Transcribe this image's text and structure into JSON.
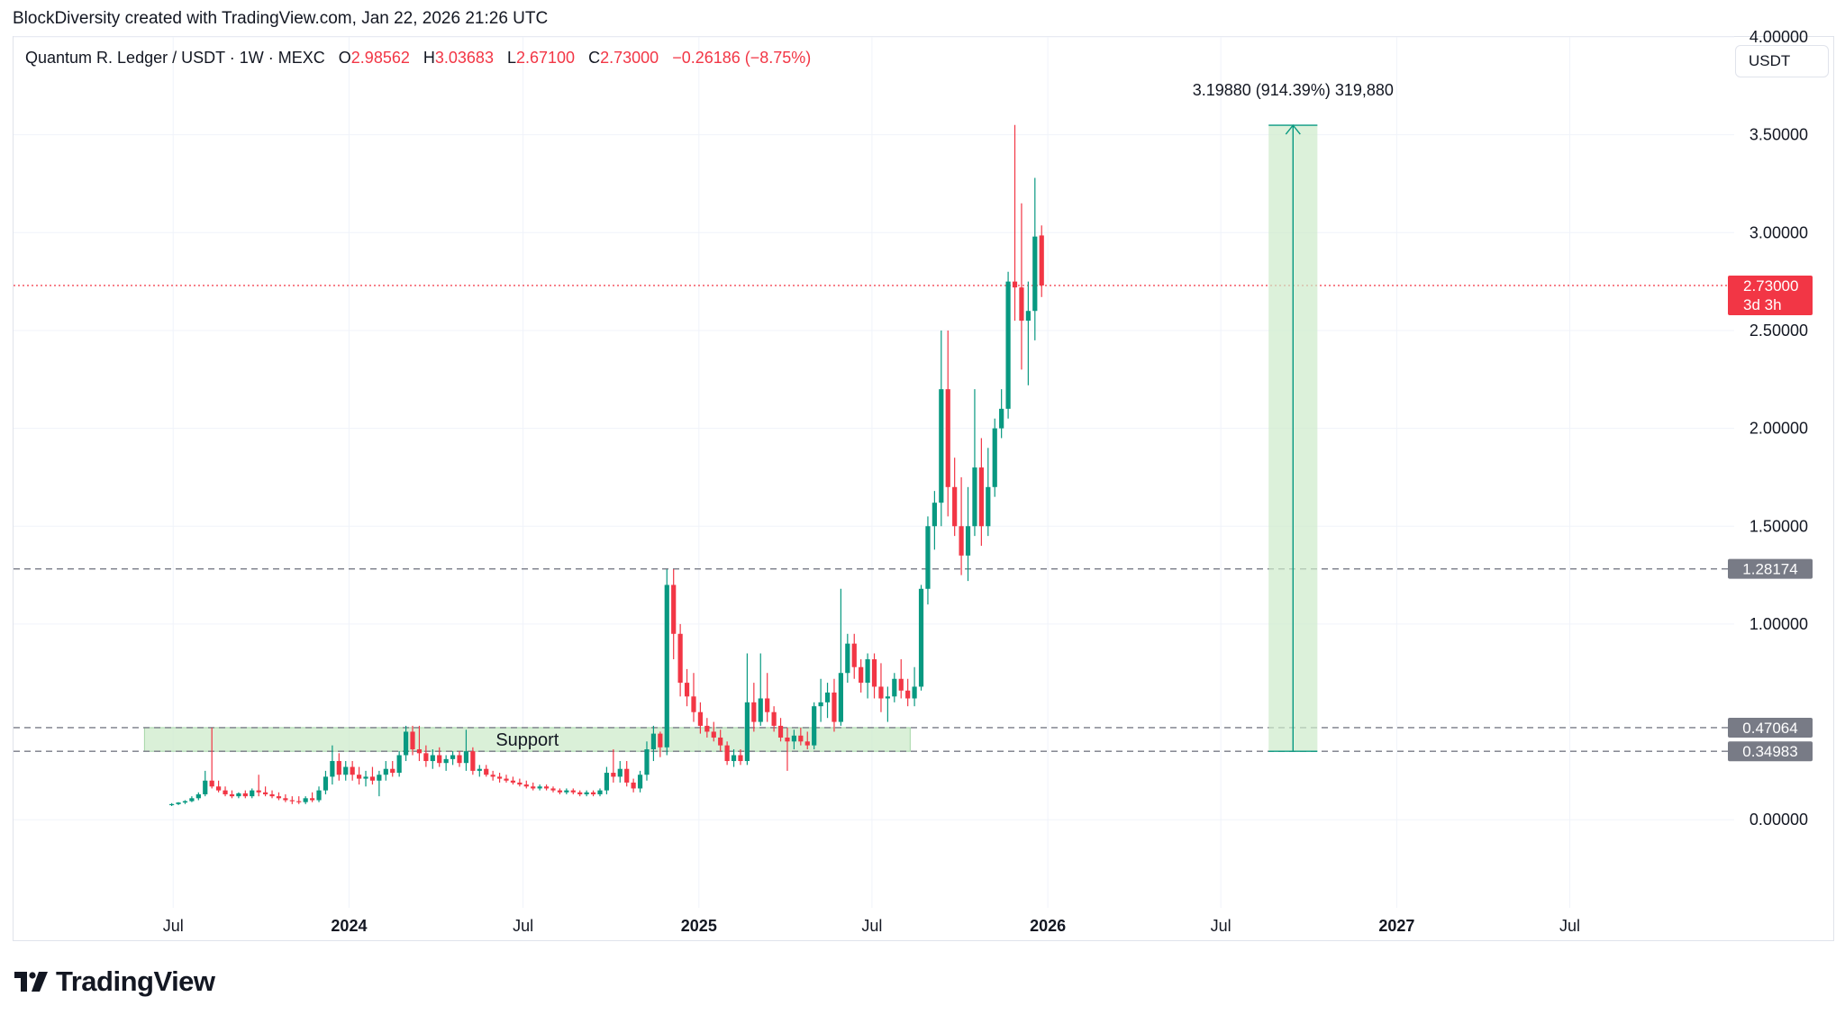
{
  "credit": "BlockDiversity created with TradingView.com, Jan 22, 2026 21:26 UTC",
  "legend": {
    "symbol": "Quantum R. Ledger / USDT · 1W · MEXC",
    "open_label": "O",
    "open": "2.98562",
    "high_label": "H",
    "high": "3.03683",
    "low_label": "L",
    "low": "2.67100",
    "close_label": "C",
    "close": "2.73000",
    "change": "−0.26186 (−8.75%)"
  },
  "currency": "USDT",
  "logo_text": "TradingView",
  "colors": {
    "up": "#089981",
    "down": "#f23645",
    "grid": "#f0f3fa",
    "zone": "#cdebcb",
    "badge_gray": "#787b86"
  },
  "chart_data": {
    "type": "candlestick",
    "timeframe": "1W",
    "y_range": [
      -0.45,
      4.0
    ],
    "price_ticks": [
      "4.00000",
      "3.50000",
      "3.00000",
      "2.50000",
      "2.00000",
      "1.50000",
      "1.00000",
      "0.00000"
    ],
    "time_ticks": [
      {
        "label": "Jul",
        "date": "2023-07-01",
        "bold": false
      },
      {
        "label": "2024",
        "date": "2024-01-01",
        "bold": true
      },
      {
        "label": "Jul",
        "date": "2024-07-01",
        "bold": false
      },
      {
        "label": "2025",
        "date": "2025-01-01",
        "bold": true
      },
      {
        "label": "Jul",
        "date": "2025-07-01",
        "bold": false
      },
      {
        "label": "2026",
        "date": "2026-01-01",
        "bold": true
      },
      {
        "label": "Jul",
        "date": "2026-07-01",
        "bold": false
      },
      {
        "label": "2027",
        "date": "2027-01-01",
        "bold": true
      },
      {
        "label": "Jul",
        "date": "2027-07-01",
        "bold": false
      }
    ],
    "x_range": [
      "2023-01-15",
      "2027-12-20"
    ],
    "last_price": {
      "value": 2.73,
      "label": "2.73000",
      "countdown": "3d 3h"
    },
    "horizontal_levels": [
      {
        "value": 1.28174,
        "label": "1.28174"
      },
      {
        "value": 0.47064,
        "label": "0.47064"
      },
      {
        "value": 0.34983,
        "label": "0.34983"
      }
    ],
    "support_zone": {
      "label": "Support",
      "from": 0.34983,
      "to": 0.47064,
      "start": "2023-06-01",
      "end": "2025-08-10"
    },
    "measure": {
      "label": "3.19880 (914.39%) 319,880",
      "from": 0.34983,
      "to": 3.54863,
      "start": "2026-08-20",
      "end": "2026-10-10"
    },
    "candles": [
      {
        "d": "2023-06-26",
        "o": 0.075,
        "h": 0.085,
        "l": 0.07,
        "c": 0.08
      },
      {
        "d": "2023-07-03",
        "o": 0.08,
        "h": 0.09,
        "l": 0.075,
        "c": 0.088
      },
      {
        "d": "2023-07-10",
        "o": 0.088,
        "h": 0.1,
        "l": 0.08,
        "c": 0.095
      },
      {
        "d": "2023-07-17",
        "o": 0.095,
        "h": 0.12,
        "l": 0.09,
        "c": 0.11
      },
      {
        "d": "2023-07-24",
        "o": 0.11,
        "h": 0.14,
        "l": 0.1,
        "c": 0.13
      },
      {
        "d": "2023-07-31",
        "o": 0.13,
        "h": 0.25,
        "l": 0.12,
        "c": 0.2
      },
      {
        "d": "2023-08-07",
        "o": 0.2,
        "h": 0.47,
        "l": 0.16,
        "c": 0.17
      },
      {
        "d": "2023-08-14",
        "o": 0.17,
        "h": 0.2,
        "l": 0.14,
        "c": 0.15
      },
      {
        "d": "2023-08-21",
        "o": 0.15,
        "h": 0.17,
        "l": 0.12,
        "c": 0.13
      },
      {
        "d": "2023-08-28",
        "o": 0.13,
        "h": 0.15,
        "l": 0.11,
        "c": 0.12
      },
      {
        "d": "2023-09-04",
        "o": 0.12,
        "h": 0.14,
        "l": 0.11,
        "c": 0.135
      },
      {
        "d": "2023-09-11",
        "o": 0.135,
        "h": 0.15,
        "l": 0.11,
        "c": 0.12
      },
      {
        "d": "2023-09-18",
        "o": 0.12,
        "h": 0.16,
        "l": 0.11,
        "c": 0.15
      },
      {
        "d": "2023-09-25",
        "o": 0.15,
        "h": 0.23,
        "l": 0.12,
        "c": 0.14
      },
      {
        "d": "2023-10-02",
        "o": 0.14,
        "h": 0.17,
        "l": 0.12,
        "c": 0.13
      },
      {
        "d": "2023-10-09",
        "o": 0.13,
        "h": 0.15,
        "l": 0.11,
        "c": 0.12
      },
      {
        "d": "2023-10-16",
        "o": 0.12,
        "h": 0.14,
        "l": 0.1,
        "c": 0.11
      },
      {
        "d": "2023-10-23",
        "o": 0.11,
        "h": 0.13,
        "l": 0.09,
        "c": 0.1
      },
      {
        "d": "2023-10-30",
        "o": 0.1,
        "h": 0.12,
        "l": 0.08,
        "c": 0.095
      },
      {
        "d": "2023-11-06",
        "o": 0.095,
        "h": 0.12,
        "l": 0.08,
        "c": 0.09
      },
      {
        "d": "2023-11-13",
        "o": 0.09,
        "h": 0.12,
        "l": 0.08,
        "c": 0.11
      },
      {
        "d": "2023-11-20",
        "o": 0.11,
        "h": 0.14,
        "l": 0.09,
        "c": 0.1
      },
      {
        "d": "2023-11-27",
        "o": 0.1,
        "h": 0.17,
        "l": 0.09,
        "c": 0.15
      },
      {
        "d": "2023-12-04",
        "o": 0.15,
        "h": 0.25,
        "l": 0.13,
        "c": 0.22
      },
      {
        "d": "2023-12-11",
        "o": 0.22,
        "h": 0.38,
        "l": 0.18,
        "c": 0.3
      },
      {
        "d": "2023-12-18",
        "o": 0.3,
        "h": 0.34,
        "l": 0.2,
        "c": 0.23
      },
      {
        "d": "2023-12-25",
        "o": 0.23,
        "h": 0.3,
        "l": 0.2,
        "c": 0.27
      },
      {
        "d": "2024-01-01",
        "o": 0.27,
        "h": 0.3,
        "l": 0.2,
        "c": 0.23
      },
      {
        "d": "2024-01-08",
        "o": 0.23,
        "h": 0.27,
        "l": 0.18,
        "c": 0.21
      },
      {
        "d": "2024-01-15",
        "o": 0.21,
        "h": 0.25,
        "l": 0.17,
        "c": 0.22
      },
      {
        "d": "2024-01-22",
        "o": 0.22,
        "h": 0.27,
        "l": 0.18,
        "c": 0.2
      },
      {
        "d": "2024-01-29",
        "o": 0.2,
        "h": 0.25,
        "l": 0.12,
        "c": 0.23
      },
      {
        "d": "2024-02-05",
        "o": 0.23,
        "h": 0.3,
        "l": 0.2,
        "c": 0.26
      },
      {
        "d": "2024-02-12",
        "o": 0.26,
        "h": 0.3,
        "l": 0.22,
        "c": 0.24
      },
      {
        "d": "2024-02-19",
        "o": 0.24,
        "h": 0.35,
        "l": 0.22,
        "c": 0.33
      },
      {
        "d": "2024-02-26",
        "o": 0.33,
        "h": 0.48,
        "l": 0.3,
        "c": 0.45
      },
      {
        "d": "2024-03-04",
        "o": 0.45,
        "h": 0.48,
        "l": 0.33,
        "c": 0.36
      },
      {
        "d": "2024-03-11",
        "o": 0.36,
        "h": 0.48,
        "l": 0.3,
        "c": 0.34
      },
      {
        "d": "2024-03-18",
        "o": 0.34,
        "h": 0.38,
        "l": 0.27,
        "c": 0.3
      },
      {
        "d": "2024-03-25",
        "o": 0.3,
        "h": 0.36,
        "l": 0.26,
        "c": 0.33
      },
      {
        "d": "2024-04-01",
        "o": 0.33,
        "h": 0.37,
        "l": 0.27,
        "c": 0.29
      },
      {
        "d": "2024-04-08",
        "o": 0.29,
        "h": 0.33,
        "l": 0.25,
        "c": 0.31
      },
      {
        "d": "2024-04-15",
        "o": 0.31,
        "h": 0.35,
        "l": 0.28,
        "c": 0.33
      },
      {
        "d": "2024-04-22",
        "o": 0.33,
        "h": 0.35,
        "l": 0.27,
        "c": 0.29
      },
      {
        "d": "2024-04-29",
        "o": 0.29,
        "h": 0.46,
        "l": 0.25,
        "c": 0.35
      },
      {
        "d": "2024-05-06",
        "o": 0.35,
        "h": 0.37,
        "l": 0.23,
        "c": 0.25
      },
      {
        "d": "2024-05-13",
        "o": 0.25,
        "h": 0.28,
        "l": 0.22,
        "c": 0.26
      },
      {
        "d": "2024-05-20",
        "o": 0.26,
        "h": 0.28,
        "l": 0.22,
        "c": 0.23
      },
      {
        "d": "2024-05-27",
        "o": 0.23,
        "h": 0.25,
        "l": 0.2,
        "c": 0.22
      },
      {
        "d": "2024-06-03",
        "o": 0.22,
        "h": 0.24,
        "l": 0.19,
        "c": 0.21
      },
      {
        "d": "2024-06-10",
        "o": 0.21,
        "h": 0.23,
        "l": 0.19,
        "c": 0.2
      },
      {
        "d": "2024-06-17",
        "o": 0.2,
        "h": 0.22,
        "l": 0.18,
        "c": 0.19
      },
      {
        "d": "2024-06-24",
        "o": 0.19,
        "h": 0.21,
        "l": 0.17,
        "c": 0.18
      },
      {
        "d": "2024-07-01",
        "o": 0.18,
        "h": 0.2,
        "l": 0.16,
        "c": 0.17
      },
      {
        "d": "2024-07-08",
        "o": 0.17,
        "h": 0.19,
        "l": 0.15,
        "c": 0.16
      },
      {
        "d": "2024-07-15",
        "o": 0.16,
        "h": 0.18,
        "l": 0.15,
        "c": 0.17
      },
      {
        "d": "2024-07-22",
        "o": 0.17,
        "h": 0.18,
        "l": 0.15,
        "c": 0.16
      },
      {
        "d": "2024-07-29",
        "o": 0.16,
        "h": 0.17,
        "l": 0.14,
        "c": 0.15
      },
      {
        "d": "2024-08-05",
        "o": 0.15,
        "h": 0.16,
        "l": 0.13,
        "c": 0.14
      },
      {
        "d": "2024-08-12",
        "o": 0.14,
        "h": 0.16,
        "l": 0.13,
        "c": 0.15
      },
      {
        "d": "2024-08-19",
        "o": 0.15,
        "h": 0.16,
        "l": 0.13,
        "c": 0.14
      },
      {
        "d": "2024-08-26",
        "o": 0.14,
        "h": 0.15,
        "l": 0.12,
        "c": 0.13
      },
      {
        "d": "2024-09-02",
        "o": 0.13,
        "h": 0.15,
        "l": 0.12,
        "c": 0.14
      },
      {
        "d": "2024-09-09",
        "o": 0.14,
        "h": 0.15,
        "l": 0.12,
        "c": 0.13
      },
      {
        "d": "2024-09-16",
        "o": 0.13,
        "h": 0.16,
        "l": 0.12,
        "c": 0.15
      },
      {
        "d": "2024-09-23",
        "o": 0.15,
        "h": 0.27,
        "l": 0.13,
        "c": 0.24
      },
      {
        "d": "2024-09-30",
        "o": 0.24,
        "h": 0.36,
        "l": 0.19,
        "c": 0.22
      },
      {
        "d": "2024-10-07",
        "o": 0.22,
        "h": 0.3,
        "l": 0.19,
        "c": 0.26
      },
      {
        "d": "2024-10-14",
        "o": 0.26,
        "h": 0.3,
        "l": 0.17,
        "c": 0.19
      },
      {
        "d": "2024-10-21",
        "o": 0.19,
        "h": 0.21,
        "l": 0.14,
        "c": 0.16
      },
      {
        "d": "2024-10-28",
        "o": 0.16,
        "h": 0.25,
        "l": 0.14,
        "c": 0.23
      },
      {
        "d": "2024-11-04",
        "o": 0.23,
        "h": 0.4,
        "l": 0.2,
        "c": 0.36
      },
      {
        "d": "2024-11-11",
        "o": 0.36,
        "h": 0.48,
        "l": 0.3,
        "c": 0.44
      },
      {
        "d": "2024-11-18",
        "o": 0.44,
        "h": 0.45,
        "l": 0.32,
        "c": 0.37
      },
      {
        "d": "2024-11-25",
        "o": 0.37,
        "h": 1.28,
        "l": 0.33,
        "c": 1.2
      },
      {
        "d": "2024-12-02",
        "o": 1.2,
        "h": 1.28,
        "l": 0.82,
        "c": 0.95
      },
      {
        "d": "2024-12-09",
        "o": 0.95,
        "h": 1.0,
        "l": 0.63,
        "c": 0.7
      },
      {
        "d": "2024-12-16",
        "o": 0.7,
        "h": 0.77,
        "l": 0.58,
        "c": 0.63
      },
      {
        "d": "2024-12-23",
        "o": 0.63,
        "h": 0.75,
        "l": 0.5,
        "c": 0.55
      },
      {
        "d": "2024-12-30",
        "o": 0.55,
        "h": 0.6,
        "l": 0.44,
        "c": 0.48
      },
      {
        "d": "2025-01-06",
        "o": 0.48,
        "h": 0.52,
        "l": 0.42,
        "c": 0.45
      },
      {
        "d": "2025-01-13",
        "o": 0.45,
        "h": 0.5,
        "l": 0.4,
        "c": 0.42
      },
      {
        "d": "2025-01-20",
        "o": 0.42,
        "h": 0.46,
        "l": 0.35,
        "c": 0.38
      },
      {
        "d": "2025-01-27",
        "o": 0.38,
        "h": 0.4,
        "l": 0.28,
        "c": 0.3
      },
      {
        "d": "2025-02-03",
        "o": 0.3,
        "h": 0.36,
        "l": 0.27,
        "c": 0.33
      },
      {
        "d": "2025-02-10",
        "o": 0.33,
        "h": 0.36,
        "l": 0.28,
        "c": 0.3
      },
      {
        "d": "2025-02-17",
        "o": 0.3,
        "h": 0.85,
        "l": 0.28,
        "c": 0.6
      },
      {
        "d": "2025-02-24",
        "o": 0.6,
        "h": 0.7,
        "l": 0.45,
        "c": 0.5
      },
      {
        "d": "2025-03-03",
        "o": 0.5,
        "h": 0.85,
        "l": 0.48,
        "c": 0.62
      },
      {
        "d": "2025-03-10",
        "o": 0.62,
        "h": 0.75,
        "l": 0.5,
        "c": 0.55
      },
      {
        "d": "2025-03-17",
        "o": 0.55,
        "h": 0.58,
        "l": 0.45,
        "c": 0.48
      },
      {
        "d": "2025-03-24",
        "o": 0.48,
        "h": 0.52,
        "l": 0.4,
        "c": 0.42
      },
      {
        "d": "2025-03-31",
        "o": 0.42,
        "h": 0.47,
        "l": 0.25,
        "c": 0.4
      },
      {
        "d": "2025-04-07",
        "o": 0.4,
        "h": 0.46,
        "l": 0.36,
        "c": 0.43
      },
      {
        "d": "2025-04-14",
        "o": 0.43,
        "h": 0.47,
        "l": 0.38,
        "c": 0.4
      },
      {
        "d": "2025-04-21",
        "o": 0.4,
        "h": 0.45,
        "l": 0.36,
        "c": 0.38
      },
      {
        "d": "2025-04-28",
        "o": 0.38,
        "h": 0.6,
        "l": 0.36,
        "c": 0.58
      },
      {
        "d": "2025-05-05",
        "o": 0.58,
        "h": 0.72,
        "l": 0.5,
        "c": 0.6
      },
      {
        "d": "2025-05-12",
        "o": 0.6,
        "h": 0.7,
        "l": 0.52,
        "c": 0.65
      },
      {
        "d": "2025-05-19",
        "o": 0.65,
        "h": 0.72,
        "l": 0.45,
        "c": 0.5
      },
      {
        "d": "2025-05-26",
        "o": 0.5,
        "h": 1.18,
        "l": 0.48,
        "c": 0.75
      },
      {
        "d": "2025-06-02",
        "o": 0.75,
        "h": 0.95,
        "l": 0.7,
        "c": 0.9
      },
      {
        "d": "2025-06-09",
        "o": 0.9,
        "h": 0.95,
        "l": 0.72,
        "c": 0.78
      },
      {
        "d": "2025-06-16",
        "o": 0.78,
        "h": 0.82,
        "l": 0.65,
        "c": 0.7
      },
      {
        "d": "2025-06-23",
        "o": 0.7,
        "h": 0.85,
        "l": 0.62,
        "c": 0.82
      },
      {
        "d": "2025-06-30",
        "o": 0.82,
        "h": 0.85,
        "l": 0.62,
        "c": 0.68
      },
      {
        "d": "2025-07-07",
        "o": 0.68,
        "h": 0.8,
        "l": 0.55,
        "c": 0.62
      },
      {
        "d": "2025-07-14",
        "o": 0.62,
        "h": 0.68,
        "l": 0.5,
        "c": 0.63
      },
      {
        "d": "2025-07-21",
        "o": 0.63,
        "h": 0.75,
        "l": 0.6,
        "c": 0.72
      },
      {
        "d": "2025-07-28",
        "o": 0.72,
        "h": 0.82,
        "l": 0.62,
        "c": 0.66
      },
      {
        "d": "2025-08-04",
        "o": 0.66,
        "h": 0.72,
        "l": 0.58,
        "c": 0.62
      },
      {
        "d": "2025-08-11",
        "o": 0.62,
        "h": 0.78,
        "l": 0.58,
        "c": 0.68
      },
      {
        "d": "2025-08-18",
        "o": 0.68,
        "h": 1.2,
        "l": 0.66,
        "c": 1.18
      },
      {
        "d": "2025-08-25",
        "o": 1.18,
        "h": 1.55,
        "l": 1.1,
        "c": 1.5
      },
      {
        "d": "2025-09-01",
        "o": 1.5,
        "h": 1.68,
        "l": 1.38,
        "c": 1.62
      },
      {
        "d": "2025-09-08",
        "o": 1.62,
        "h": 2.5,
        "l": 1.5,
        "c": 2.2
      },
      {
        "d": "2025-09-15",
        "o": 2.2,
        "h": 2.5,
        "l": 1.55,
        "c": 1.7
      },
      {
        "d": "2025-09-22",
        "o": 1.7,
        "h": 1.85,
        "l": 1.45,
        "c": 1.5
      },
      {
        "d": "2025-09-29",
        "o": 1.5,
        "h": 1.75,
        "l": 1.25,
        "c": 1.35
      },
      {
        "d": "2025-10-06",
        "o": 1.35,
        "h": 1.7,
        "l": 1.22,
        "c": 1.5
      },
      {
        "d": "2025-10-13",
        "o": 1.5,
        "h": 2.2,
        "l": 1.45,
        "c": 1.8
      },
      {
        "d": "2025-10-20",
        "o": 1.8,
        "h": 1.95,
        "l": 1.4,
        "c": 1.5
      },
      {
        "d": "2025-10-27",
        "o": 1.5,
        "h": 1.9,
        "l": 1.45,
        "c": 1.7
      },
      {
        "d": "2025-11-03",
        "o": 1.7,
        "h": 2.05,
        "l": 1.65,
        "c": 2.0
      },
      {
        "d": "2025-11-10",
        "o": 2.0,
        "h": 2.2,
        "l": 1.95,
        "c": 2.1
      },
      {
        "d": "2025-11-17",
        "o": 2.1,
        "h": 2.8,
        "l": 2.05,
        "c": 2.75
      },
      {
        "d": "2025-11-24",
        "o": 2.75,
        "h": 3.55,
        "l": 2.55,
        "c": 2.72
      },
      {
        "d": "2025-12-01",
        "o": 2.72,
        "h": 3.15,
        "l": 2.3,
        "c": 2.55
      },
      {
        "d": "2025-12-08",
        "o": 2.55,
        "h": 2.75,
        "l": 2.22,
        "c": 2.6
      },
      {
        "d": "2025-12-15",
        "o": 2.6,
        "h": 3.28,
        "l": 2.45,
        "c": 2.98
      },
      {
        "d": "2025-12-22",
        "o": 2.98562,
        "h": 3.03683,
        "l": 2.671,
        "c": 2.73
      }
    ]
  }
}
